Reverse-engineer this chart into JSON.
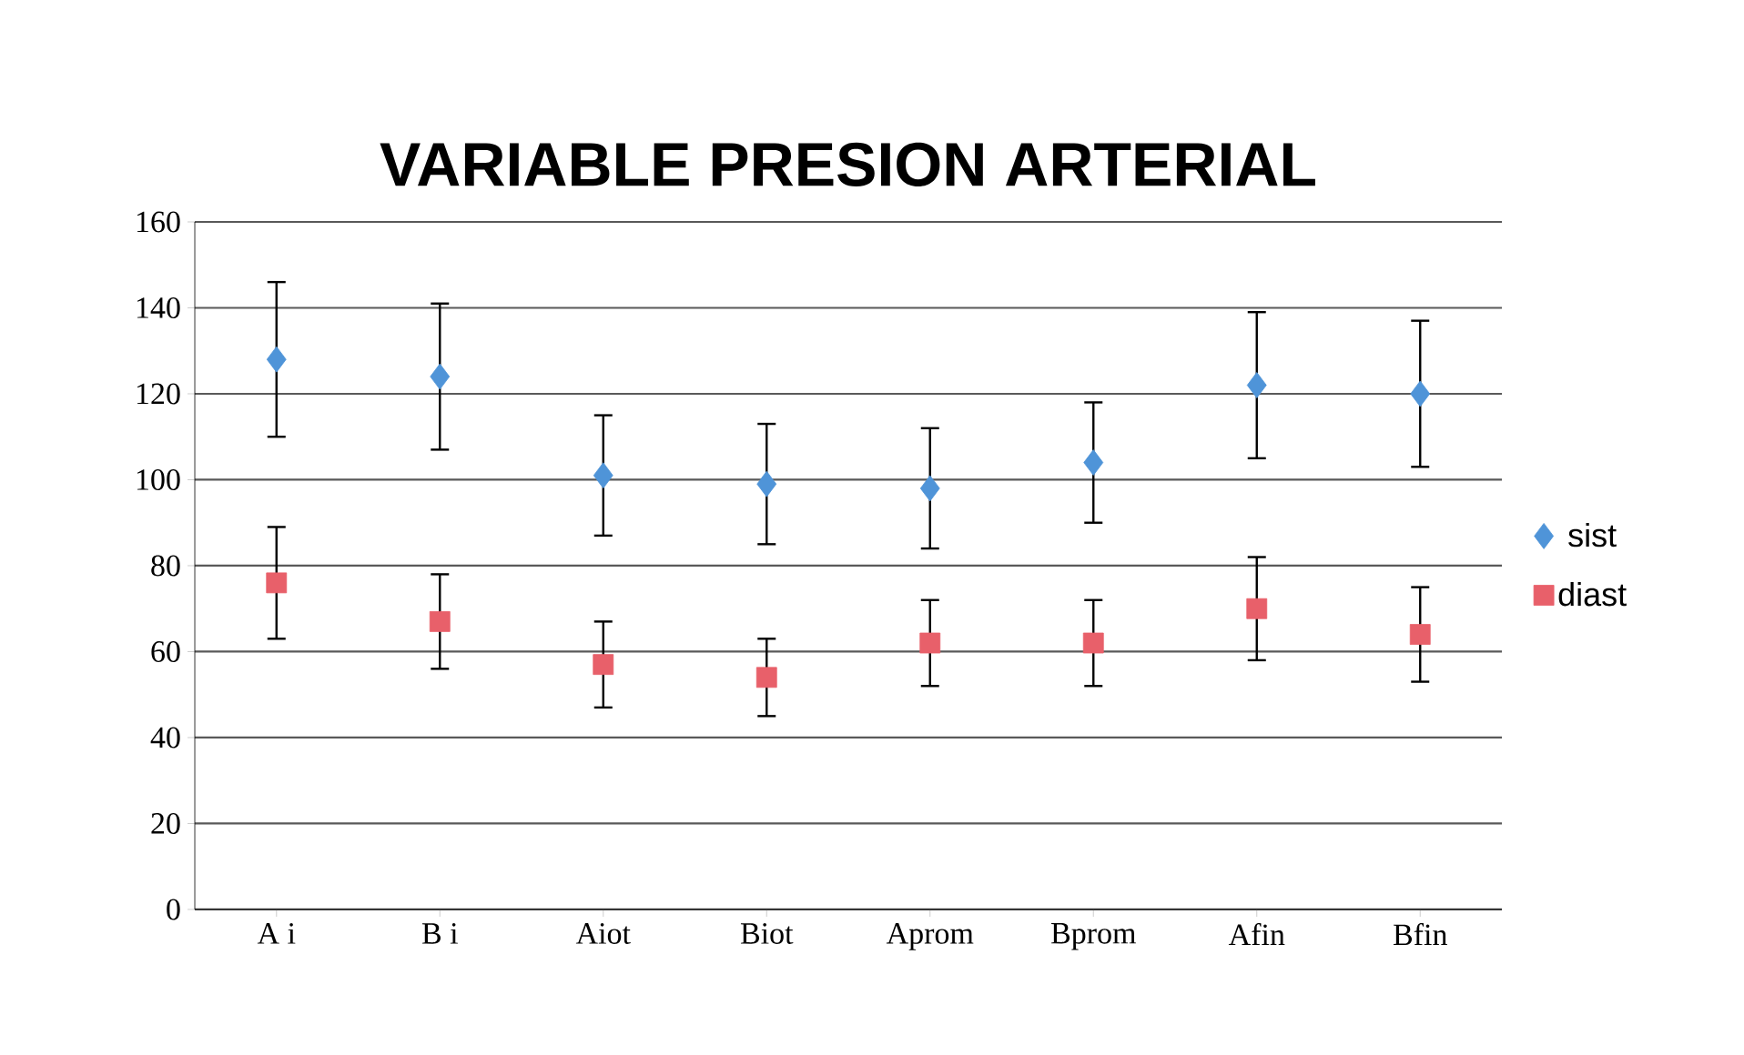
{
  "chart_data": {
    "type": "scatter",
    "title": "VARIABLE PRESION ARTERIAL",
    "categories": [
      "A i",
      "B i",
      "Aiot",
      "Biot",
      "Aprom",
      "Bprom",
      "Afin",
      "Bfin"
    ],
    "series": [
      {
        "name": "sist",
        "color": "#4f94d8",
        "marker": "diamond",
        "values": [
          128,
          124,
          101,
          99,
          98,
          104,
          122,
          120
        ],
        "errors": [
          18,
          17,
          14,
          14,
          14,
          14,
          17,
          17
        ]
      },
      {
        "name": "diast",
        "color": "#e8606a",
        "marker": "square",
        "values": [
          76,
          67,
          57,
          54,
          62,
          62,
          70,
          64
        ],
        "errors": [
          13,
          11,
          10,
          9,
          10,
          10,
          12,
          11
        ]
      }
    ],
    "ylim": [
      0,
      160
    ],
    "yticks": [
      0,
      20,
      40,
      60,
      80,
      100,
      120,
      140,
      160
    ],
    "grid": "y",
    "legend": "right"
  }
}
